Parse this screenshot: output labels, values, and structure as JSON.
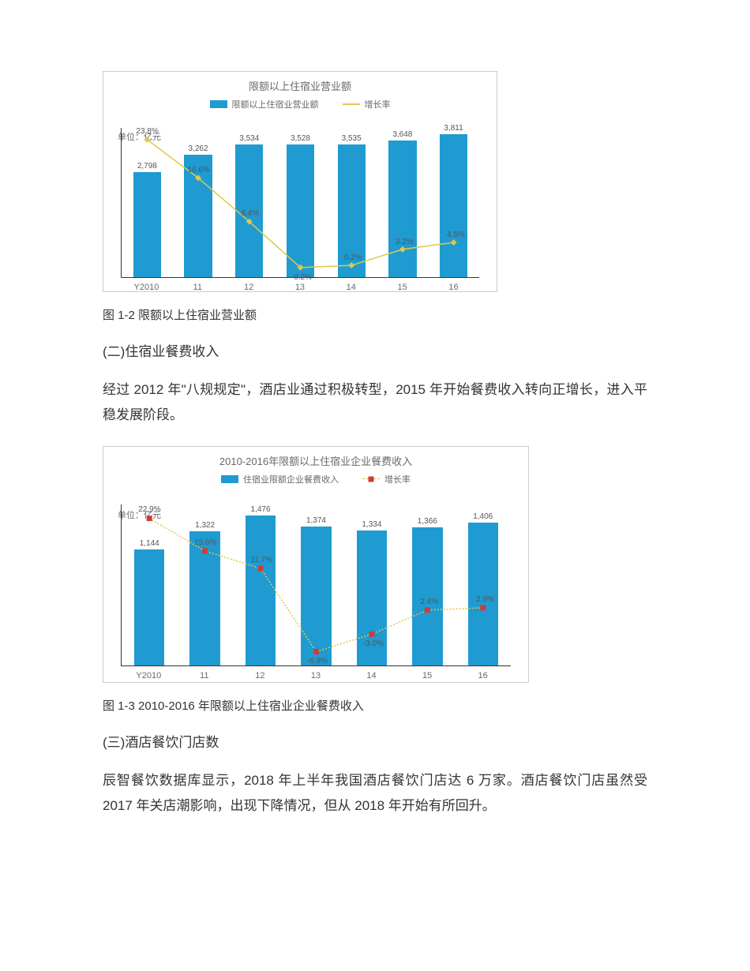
{
  "chart1": {
    "type": "bar+line",
    "title": "限额以上住宿业营业额",
    "unit": "单位：亿元",
    "legend": {
      "bar": "限额以上住宿业营业额",
      "line": "增长率"
    },
    "categories": [
      "Y2010",
      "11",
      "12",
      "13",
      "14",
      "15",
      "16"
    ],
    "bar_values": [
      2798,
      3262,
      3534,
      3528,
      3535,
      3648,
      3811
    ],
    "bar_labels": [
      "2,798",
      "3,262",
      "3,534",
      "3,528",
      "3,535",
      "3,648",
      "3,811"
    ],
    "growth_labels": [
      "23.8%",
      "16.6%",
      "8.4%",
      "-0.2%",
      "0.2%",
      "3.2%",
      "4.5%"
    ],
    "growth_values": [
      23.8,
      16.6,
      8.4,
      -0.2,
      0.2,
      3.2,
      4.5
    ],
    "bar_color": "#1f9bd1",
    "line_color": "#e0c74a",
    "marker_color": "#e0c74a",
    "marker_shape": "diamond",
    "y_max_bar": 4000,
    "growth_min": -2,
    "growth_max": 26,
    "background_color": "#ffffff",
    "border_color": "#cccccc"
  },
  "caption1": "图 1-2 限额以上住宿业营业额",
  "heading2": "(二)住宿业餐费收入",
  "para1": "经过 2012 年\"八规规定\"，酒店业通过积极转型，2015 年开始餐费收入转向正增长，进入平稳发展阶段。",
  "chart2": {
    "type": "bar+line",
    "title": "2010-2016年限额以上住宿业企业餐费收入",
    "unit": "单位：亿元",
    "legend": {
      "bar": "住宿业限额企业餐费收入",
      "line": "增长率"
    },
    "categories": [
      "Y2010",
      "11",
      "12",
      "13",
      "14",
      "15",
      "16"
    ],
    "bar_values": [
      1144,
      1322,
      1476,
      1374,
      1334,
      1366,
      1406
    ],
    "bar_labels": [
      "1,144",
      "1,322",
      "1,476",
      "1,374",
      "1,334",
      "1,366",
      "1,406"
    ],
    "growth_labels": [
      "22.9%",
      "15.6%",
      "11.7%",
      "-6.9%",
      "-3.0%",
      "2.4%",
      "2.9%"
    ],
    "growth_values": [
      22.9,
      15.6,
      11.7,
      -6.9,
      -3.0,
      2.4,
      2.9
    ],
    "bar_color": "#1f9bd1",
    "line_color": "#e0c74a",
    "marker_color": "#d23a3a",
    "marker_shape": "square",
    "y_max_bar": 1600,
    "growth_min": -10,
    "growth_max": 26,
    "background_color": "#ffffff",
    "border_color": "#cccccc"
  },
  "caption2": "图 1-3 2010-2016 年限额以上住宿业企业餐费收入",
  "heading3": "(三)酒店餐饮门店数",
  "para2": "辰智餐饮数据库显示，2018 年上半年我国酒店餐饮门店达 6 万家。酒店餐饮门店虽然受 2017 年关店潮影响，出现下降情况，但从 2018 年开始有所回升。"
}
